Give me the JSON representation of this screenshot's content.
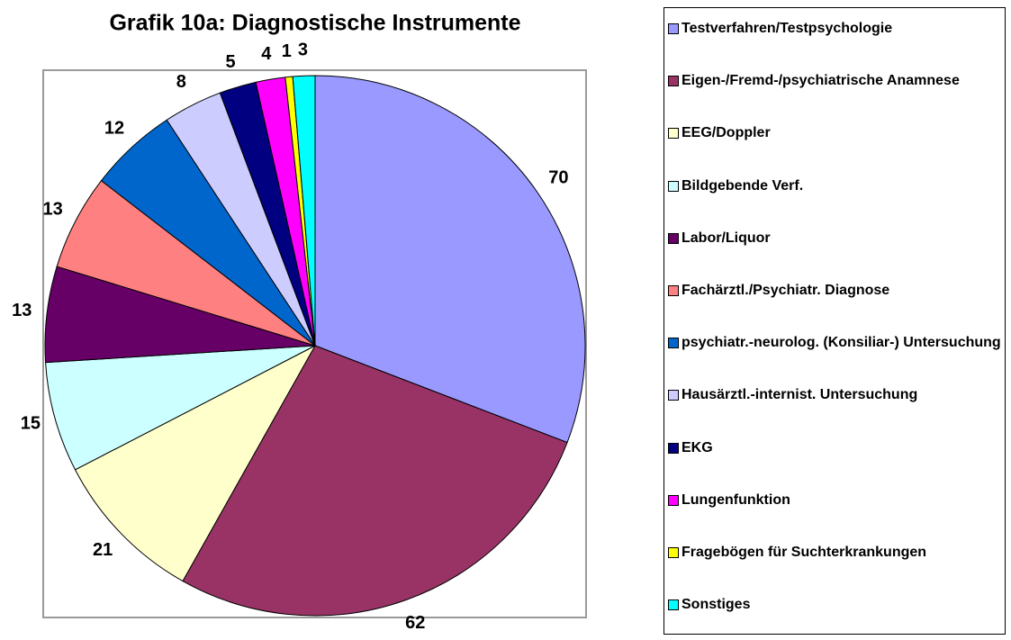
{
  "chart_data": {
    "type": "pie",
    "title": "Grafik 10a: Diagnostische Instrumente",
    "categories": [
      "Testverfahren/Testpsychologie",
      "Eigen-/Fremd-/psychiatrische Anamnese",
      "EEG/Doppler",
      "Bildgebende Verf.",
      "Labor/Liquor",
      "Fachärztl./Psychiatr. Diagnose",
      "psychiatr.-neurolog. (Konsiliar-) Untersuchung",
      "Hausärztl.-internist. Untersuchung",
      "EKG",
      "Lungenfunktion",
      "Fragebögen für Suchterkrankungen",
      "Sonstiges"
    ],
    "values": [
      70,
      62,
      21,
      15,
      13,
      13,
      12,
      8,
      5,
      4,
      1,
      3
    ],
    "colors": [
      "#9999ff",
      "#993366",
      "#ffffcc",
      "#ccffff",
      "#660066",
      "#ff8080",
      "#0066cc",
      "#ccccff",
      "#000080",
      "#ff00ff",
      "#ffff00",
      "#00ffff"
    ],
    "legend": "right"
  }
}
